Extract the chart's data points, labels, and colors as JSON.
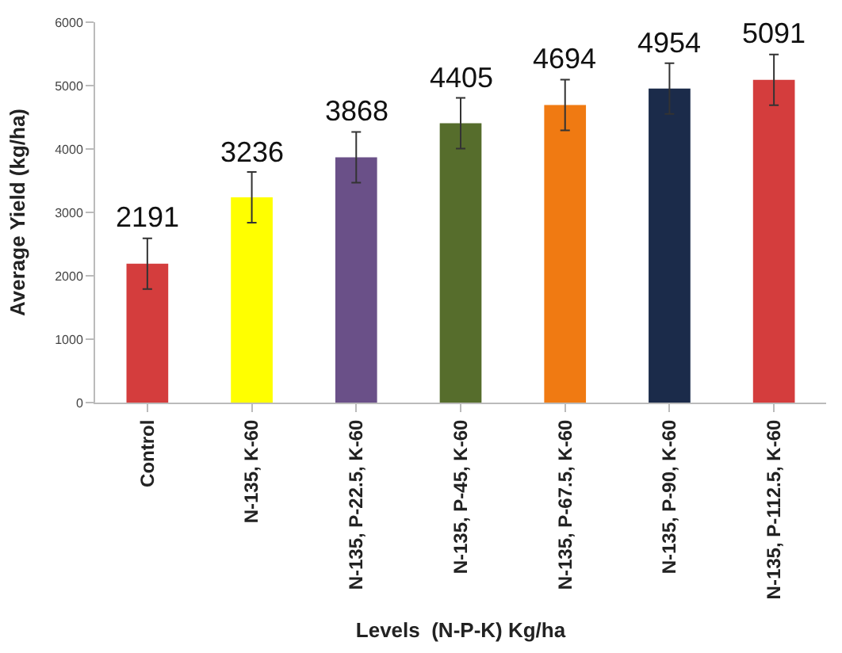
{
  "chart_data": {
    "type": "bar",
    "xlabel": "Levels  (N-P-K) Kg/ha",
    "ylabel": "Average Yield (kg/ha)",
    "categories": [
      "Control",
      "N-135, K-60",
      "N-135, P-22.5, K-60",
      "N-135, P-45, K-60",
      "N-135, P-67.5, K-60",
      "N-135, P-90, K-60",
      "N-135, P-112.5, K-60"
    ],
    "values": [
      2191,
      3236,
      3868,
      4405,
      4694,
      4954,
      5091
    ],
    "colors": [
      "#d43d3d",
      "#ffff00",
      "#6a5088",
      "#566d2c",
      "#f07a12",
      "#1b2b4a",
      "#d43d3d"
    ],
    "errors": [
      400,
      400,
      400,
      400,
      400,
      400,
      400
    ],
    "data_labels": true,
    "ylim": [
      0,
      6000
    ],
    "yticks": [
      0,
      1000,
      2000,
      3000,
      4000,
      5000,
      6000
    ],
    "legend": false
  }
}
